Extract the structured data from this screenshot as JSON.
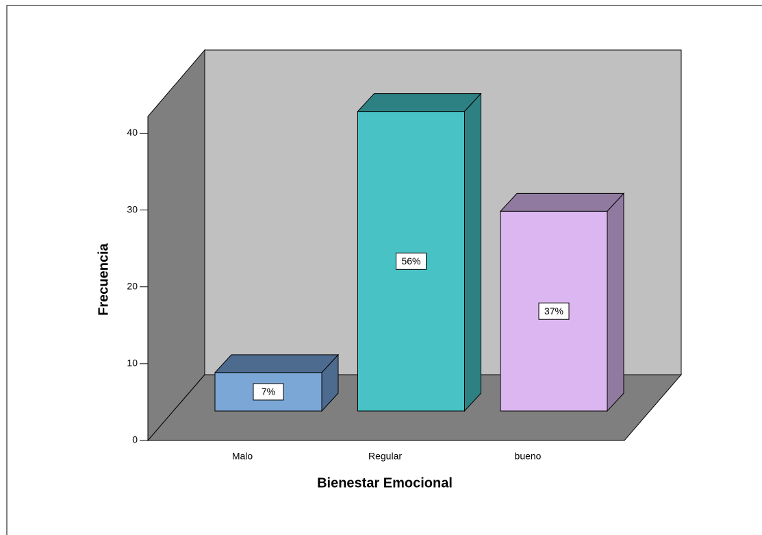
{
  "chart_data": {
    "type": "bar3d",
    "xlabel": "Bienestar Emocional",
    "ylabel": "Frecuencia",
    "categories": [
      "Malo",
      "Regular",
      "bueno"
    ],
    "values": [
      5,
      39,
      26
    ],
    "value_labels": [
      "7%",
      "56%",
      "37%"
    ],
    "colors": [
      "#7ba7d7",
      "#48c2c5",
      "#dcb6f0"
    ],
    "side_colors": [
      "#4c6b8e",
      "#2e8183",
      "#917aa0"
    ],
    "ylim": [
      0,
      42
    ],
    "yticks": [
      0,
      10,
      20,
      30,
      40
    ],
    "grid": false
  }
}
